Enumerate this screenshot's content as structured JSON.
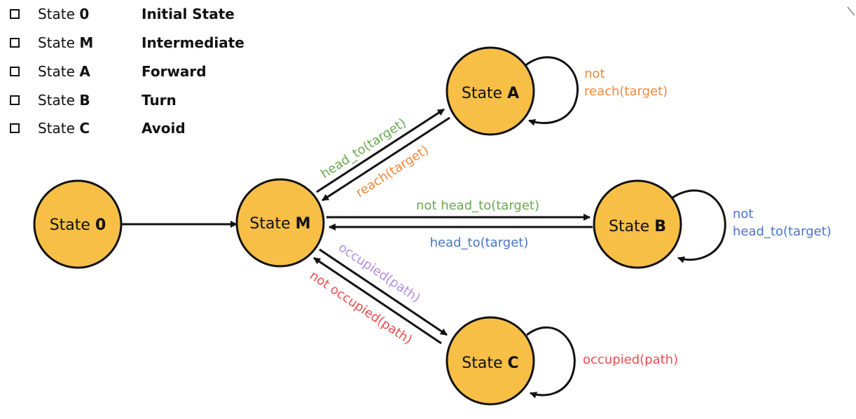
{
  "legend": [
    {
      "prefix": "State",
      "id": "0",
      "description": "Initial State"
    },
    {
      "prefix": "State",
      "id": "M",
      "description": "Intermediate"
    },
    {
      "prefix": "State",
      "id": "A",
      "description": "Forward"
    },
    {
      "prefix": "State",
      "id": "B",
      "description": "Turn"
    },
    {
      "prefix": "State",
      "id": "C",
      "description": "Avoid"
    }
  ],
  "nodes": {
    "state0": {
      "prefix": "State",
      "id": "0"
    },
    "stateM": {
      "prefix": "State",
      "id": "M"
    },
    "stateA": {
      "prefix": "State",
      "id": "A"
    },
    "stateB": {
      "prefix": "State",
      "id": "B"
    },
    "stateC": {
      "prefix": "State",
      "id": "C"
    }
  },
  "edges": {
    "m_to_a": "head_to(target)",
    "a_to_m": "reach(target)",
    "a_self_line1": "not",
    "a_self_line2": "reach(target)",
    "m_to_b": "not head_to(target)",
    "b_to_m": "head_to(target)",
    "b_self_line1": "not",
    "b_self_line2": "head_to(target)",
    "m_to_c": "occupied(path)",
    "c_to_m": "not occupied(path)",
    "c_self": "occupied(path)"
  },
  "colors": {
    "node_fill": "#f7bf46",
    "node_stroke": "#111111",
    "green": "#6aa84f",
    "orange": "#f0883a",
    "blue": "#4a74c9",
    "purple": "#b48ee0",
    "red": "#ee4b4f"
  }
}
